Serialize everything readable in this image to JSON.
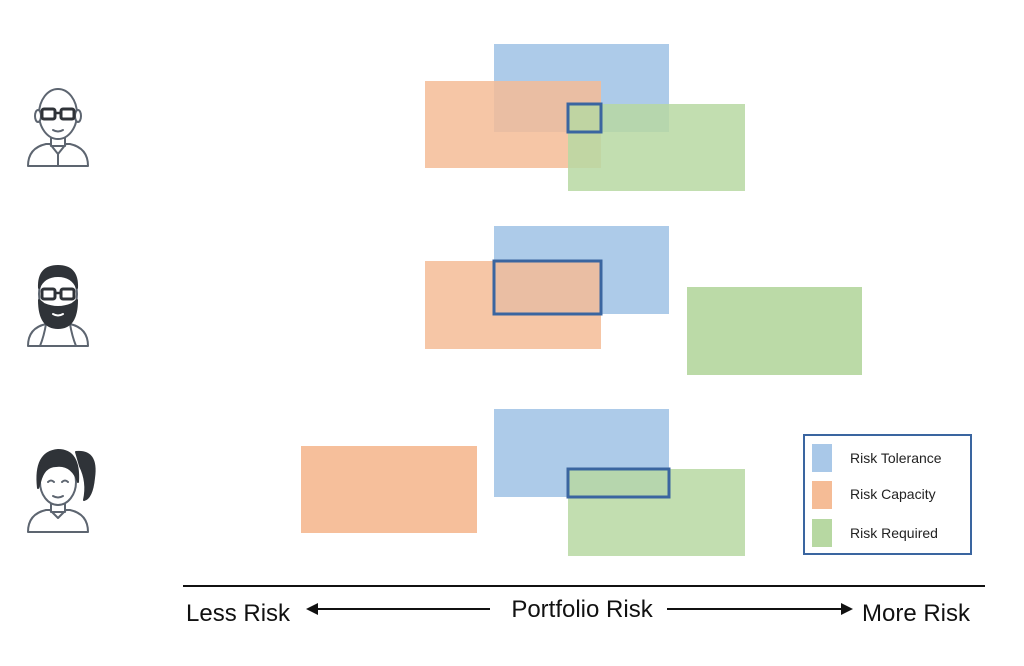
{
  "legend": {
    "items": [
      {
        "label": "Risk Tolerance",
        "color": "#a9c8e8"
      },
      {
        "label": "Risk Capacity",
        "color": "#f5bc96"
      },
      {
        "label": "Risk Required",
        "color": "#b7d8a2"
      }
    ],
    "border_color": "#3a65a0"
  },
  "axis": {
    "left_label": "Less Risk",
    "center_label": "Portfolio Risk",
    "right_label": "More Risk"
  },
  "colors": {
    "tolerance": "#a9c8e8",
    "capacity": "#f5bc96",
    "required": "#b7d8a2",
    "overlap_outline": "#3a65a0",
    "avatar_line": "#5d6570",
    "hair_dark": "#2f3338"
  },
  "avatars": [
    {
      "name": "bald-man-with-glasses-icon"
    },
    {
      "name": "bearded-man-with-glasses-icon"
    },
    {
      "name": "woman-with-ponytail-icon"
    }
  ]
}
